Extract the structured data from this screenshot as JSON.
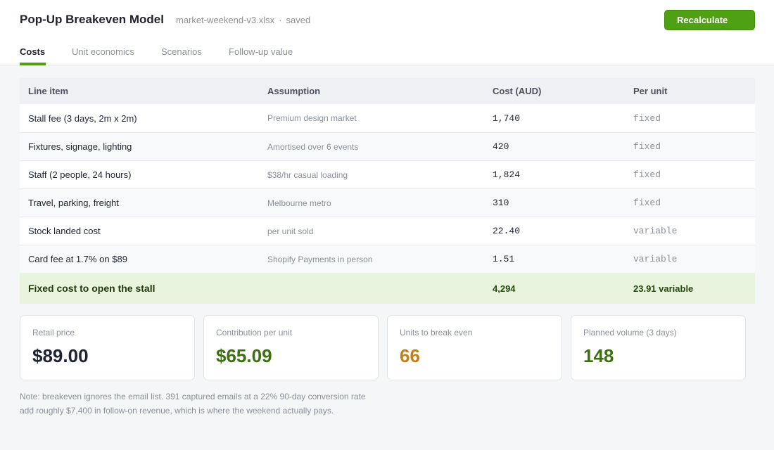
{
  "header": {
    "title": "Pop-Up Breakeven Model",
    "file_name": "market-weekend-v3.xlsx",
    "separator": "·",
    "save_status": "saved",
    "recalc_label": "Recalculate"
  },
  "tabs": [
    {
      "label": "Costs",
      "active": true
    },
    {
      "label": "Unit economics",
      "active": false
    },
    {
      "label": "Scenarios",
      "active": false
    },
    {
      "label": "Follow-up value",
      "active": false
    }
  ],
  "table": {
    "columns": [
      "Line item",
      "Assumption",
      "Cost (AUD)",
      "Per unit"
    ],
    "rows": [
      {
        "item": "Stall fee (3 days, 2m x 2m)",
        "assumption": "Premium design market",
        "cost": "1,740",
        "per_unit": "fixed"
      },
      {
        "item": "Fixtures, signage, lighting",
        "assumption": "Amortised over 6 events",
        "cost": "420",
        "per_unit": "fixed"
      },
      {
        "item": "Staff (2 people, 24 hours)",
        "assumption": "$38/hr casual loading",
        "cost": "1,824",
        "per_unit": "fixed"
      },
      {
        "item": "Travel, parking, freight",
        "assumption": "Melbourne metro",
        "cost": "310",
        "per_unit": "fixed"
      },
      {
        "item": "Stock landed cost",
        "assumption": "per unit sold",
        "cost": "22.40",
        "per_unit": "variable"
      },
      {
        "item": "Card fee at 1.7% on $89",
        "assumption": "Shopify Payments in person",
        "cost": "1.51",
        "per_unit": "variable"
      }
    ],
    "total": {
      "label": "Fixed cost to open the stall",
      "cost": "4,294",
      "per_unit": "23.91 variable"
    }
  },
  "cards": [
    {
      "label": "Retail price",
      "value": "$89.00",
      "color": "#1d2330"
    },
    {
      "label": "Contribution per unit",
      "value": "$65.09",
      "color": "#3d7012"
    },
    {
      "label": "Units to break even",
      "value": "66",
      "color": "#c17f1e"
    },
    {
      "label": "Planned volume (3 days)",
      "value": "148",
      "color": "#3d7012"
    }
  ],
  "note": {
    "line1": "Note: breakeven ignores the email list. 391 captured emails at a 22% 90-day conversion rate",
    "line2": "add roughly $7,400 in follow-on revenue, which is where the weekend actually pays."
  },
  "colors": {
    "accent": "#4fa013",
    "total_row_bg": "#e8f4de"
  }
}
